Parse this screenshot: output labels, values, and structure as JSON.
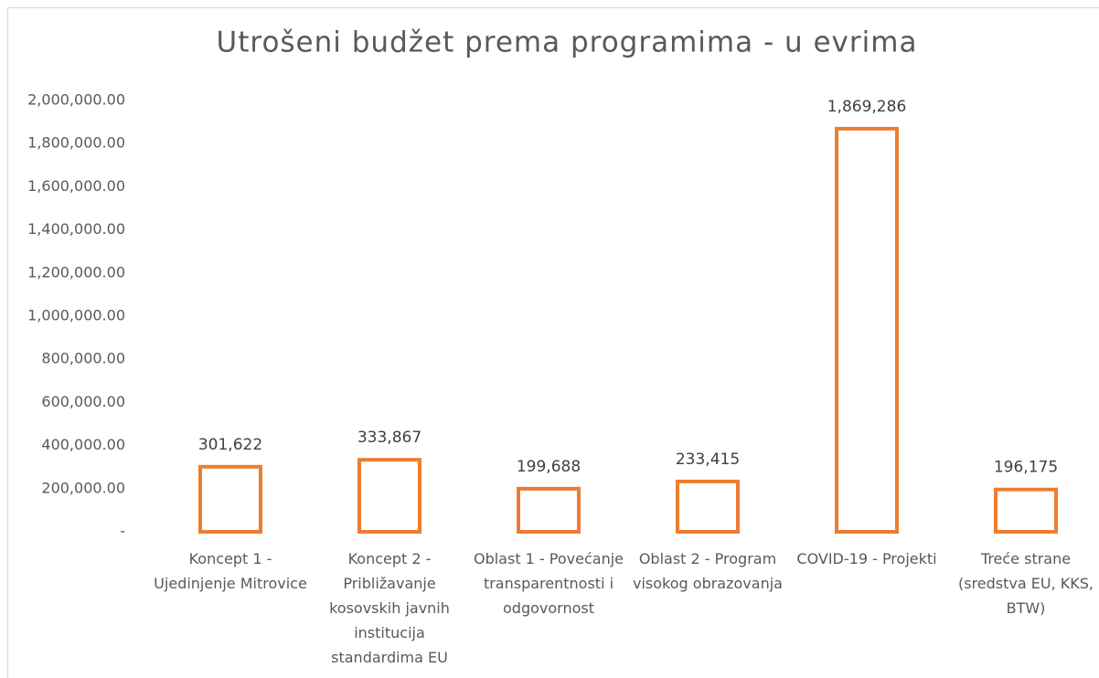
{
  "chart_data": {
    "type": "bar",
    "title": "Utrošeni budžet prema programima - u evrima",
    "categories": [
      "Koncept 1 - Ujedinjenje Mitrovice",
      "Koncept 2 - Približavanje kosovskih javnih institucija standardima EU",
      "Oblast 1 - Povećanje transparentnosti i odgovornost",
      "Oblast 2 - Program visokog obrazovanja",
      "COVID-19 - Projekti",
      "Treće strane (sredstva EU, KKS, BTW)"
    ],
    "values": [
      301622,
      333867,
      199688,
      233415,
      1869286,
      196175
    ],
    "value_labels": [
      "301,622",
      "333,867",
      "199,688",
      "233,415",
      "1,869,286",
      "196,175"
    ],
    "color": "#ed7d31",
    "ylim": [
      0,
      2000000
    ],
    "yticks": [
      {
        "value": 0,
        "label": "-"
      },
      {
        "value": 200000,
        "label": "200,000.00"
      },
      {
        "value": 400000,
        "label": "400,000.00"
      },
      {
        "value": 600000,
        "label": "600,000.00"
      },
      {
        "value": 800000,
        "label": "800,000.00"
      },
      {
        "value": 1000000,
        "label": "1,000,000.00"
      },
      {
        "value": 1200000,
        "label": "1,200,000.00"
      },
      {
        "value": 1400000,
        "label": "1,400,000.00"
      },
      {
        "value": 1600000,
        "label": "1,600,000.00"
      },
      {
        "value": 1800000,
        "label": "1,800,000.00"
      },
      {
        "value": 2000000,
        "label": "2,000,000.00"
      }
    ],
    "grid": false
  }
}
